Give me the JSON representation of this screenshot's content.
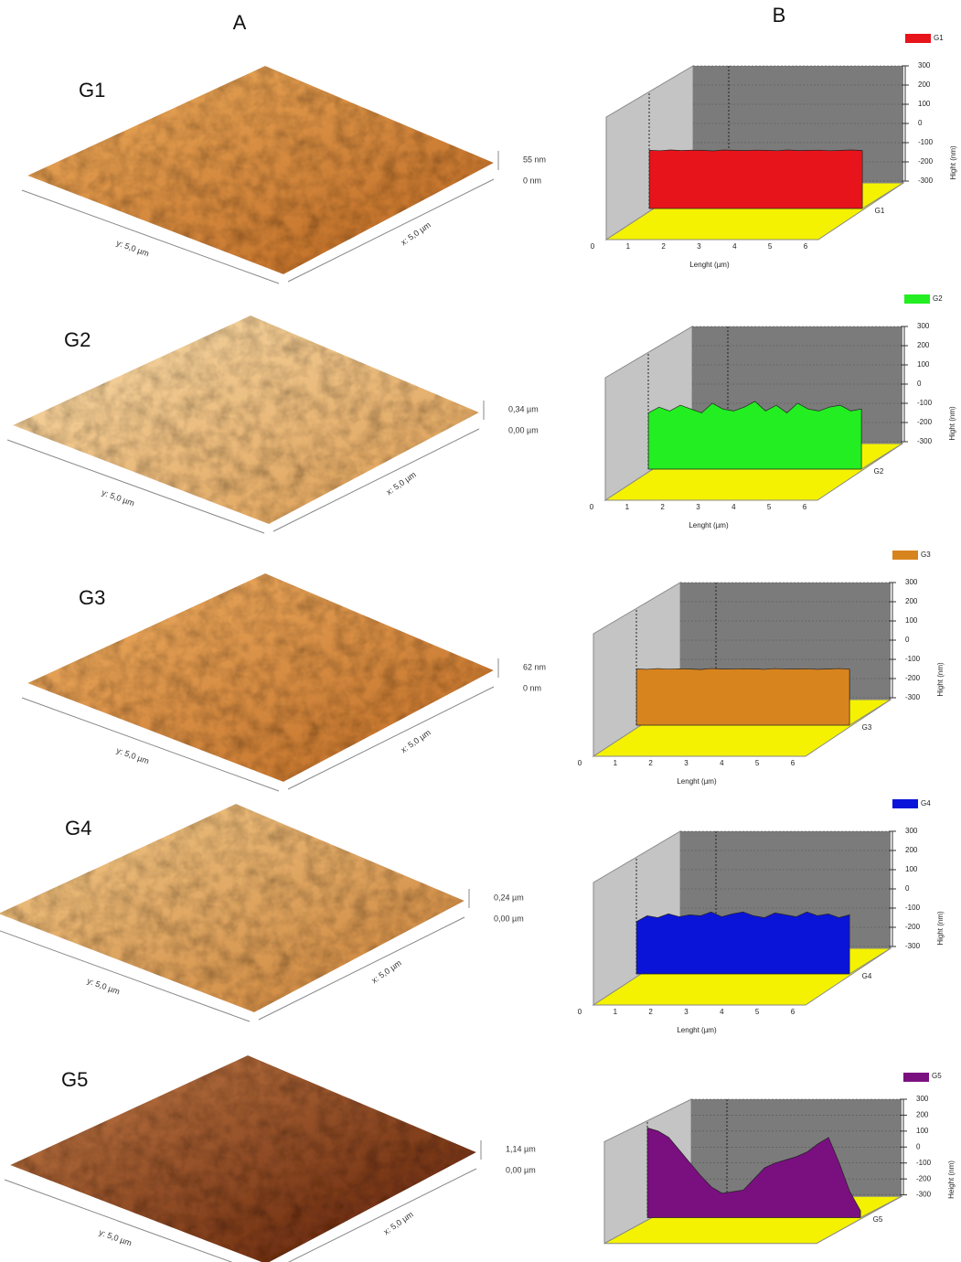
{
  "panel_labels": [
    "A",
    "B"
  ],
  "afm": [
    {
      "label": "G1",
      "z_max": "55 nm",
      "z_min": "0 nm",
      "y_size": "y: 5,0 µm",
      "x_size": "x: 5,0 µm"
    },
    {
      "label": "G2",
      "z_max": "0,34 µm",
      "z_min": "0,00 µm",
      "y_size": "y: 5,0 µm",
      "x_size": "x: 5,0 µm"
    },
    {
      "label": "G3",
      "z_max": "62 nm",
      "z_min": "0 nm",
      "y_size": "y: 5,0 µm",
      "x_size": "x: 5,0 µm"
    },
    {
      "label": "G4",
      "z_max": "0,24 µm",
      "z_min": "0,00 µm",
      "y_size": "y: 5,0 µm",
      "x_size": "x: 5,0 µm"
    },
    {
      "label": "G5",
      "z_max": "1,14 µm",
      "z_min": "0,00 µm",
      "y_size": "y: 5,0 µm",
      "x_size": "x: 5,0 µm"
    }
  ],
  "chart_data": [
    {
      "type": "area",
      "xlabel": "Lenght (µm)",
      "ylabel": "Hight (nm)",
      "xlim": [
        0,
        7.7
      ],
      "xticks": [
        0,
        1,
        2,
        3,
        4,
        5,
        6
      ],
      "ylim": [
        -300,
        300
      ],
      "yticks": [
        300,
        200,
        100,
        0,
        -100,
        -200,
        -300
      ],
      "x": [
        1.6,
        1.9,
        2.2,
        2.5,
        2.8,
        3.1,
        3.4,
        3.7,
        4.0,
        4.3,
        4.6,
        4.9,
        5.2,
        5.5,
        5.8,
        6.1,
        6.4,
        6.7,
        7.0,
        7.3,
        7.6
      ],
      "series": [
        {
          "name": "G1",
          "color": "#e8141b",
          "values": [
            -140,
            -142,
            -138,
            -141,
            -139,
            -140,
            -143,
            -138,
            -140,
            -141,
            -139,
            -140,
            -142,
            -138,
            -141,
            -140,
            -139,
            -142,
            -140,
            -138,
            -141
          ]
        }
      ]
    },
    {
      "type": "area",
      "xlabel": "Lenght (µm)",
      "ylabel": "Hight (nm)",
      "xlim": [
        0,
        7.7
      ],
      "xticks": [
        0,
        1,
        2,
        3,
        4,
        5,
        6
      ],
      "ylim": [
        -300,
        300
      ],
      "yticks": [
        300,
        200,
        100,
        0,
        -100,
        -200,
        -300
      ],
      "x": [
        1.6,
        1.9,
        2.2,
        2.5,
        2.8,
        3.1,
        3.4,
        3.7,
        4.0,
        4.3,
        4.6,
        4.9,
        5.2,
        5.5,
        5.8,
        6.1,
        6.4,
        6.7,
        7.0,
        7.3,
        7.6
      ],
      "series": [
        {
          "name": "G2",
          "color": "#22ee22",
          "values": [
            -150,
            -120,
            -140,
            -110,
            -130,
            -150,
            -100,
            -130,
            -140,
            -120,
            -90,
            -140,
            -110,
            -150,
            -100,
            -130,
            -140,
            -120,
            -110,
            -140,
            -130
          ]
        }
      ]
    },
    {
      "type": "area",
      "xlabel": "Lenght (µm)",
      "ylabel": "Hight (nm)",
      "xlim": [
        0,
        7.7
      ],
      "xticks": [
        0,
        1,
        2,
        3,
        4,
        5,
        6
      ],
      "ylim": [
        -300,
        300
      ],
      "yticks": [
        300,
        200,
        100,
        0,
        -100,
        -200,
        -300
      ],
      "x": [
        1.6,
        1.9,
        2.2,
        2.5,
        2.8,
        3.1,
        3.4,
        3.7,
        4.0,
        4.3,
        4.6,
        4.9,
        5.2,
        5.5,
        5.8,
        6.1,
        6.4,
        6.7,
        7.0,
        7.3,
        7.6
      ],
      "series": [
        {
          "name": "G3",
          "color": "#d8841e",
          "values": [
            -150,
            -152,
            -148,
            -151,
            -149,
            -150,
            -153,
            -148,
            -150,
            -151,
            -149,
            -150,
            -152,
            -148,
            -151,
            -150,
            -149,
            -152,
            -150,
            -148,
            -151
          ]
        }
      ]
    },
    {
      "type": "area",
      "xlabel": "Lenght (µm)",
      "ylabel": "Hight (nm)",
      "xlim": [
        0,
        7.7
      ],
      "xticks": [
        0,
        1,
        2,
        3,
        4,
        5,
        6
      ],
      "ylim": [
        -300,
        300
      ],
      "yticks": [
        300,
        200,
        100,
        0,
        -100,
        -200,
        -300
      ],
      "x": [
        1.6,
        1.9,
        2.2,
        2.5,
        2.8,
        3.1,
        3.4,
        3.7,
        4.0,
        4.3,
        4.6,
        4.9,
        5.2,
        5.5,
        5.8,
        6.1,
        6.4,
        6.7,
        7.0,
        7.3,
        7.6
      ],
      "series": [
        {
          "name": "G4",
          "color": "#0a14d8",
          "values": [
            -170,
            -140,
            -150,
            -130,
            -145,
            -135,
            -140,
            -120,
            -145,
            -130,
            -120,
            -140,
            -150,
            -125,
            -135,
            -145,
            -120,
            -140,
            -130,
            -150,
            -135
          ]
        }
      ]
    },
    {
      "type": "area",
      "ylabel": "Height (nm)",
      "ylim": [
        -300,
        300
      ],
      "yticks": [
        300,
        200,
        100,
        0,
        -100,
        -200,
        -300
      ],
      "x": [
        1.6,
        1.9,
        2.2,
        2.5,
        2.8,
        3.1,
        3.4,
        3.7,
        4.0,
        4.3,
        4.6,
        4.9,
        5.2,
        5.5,
        5.8,
        6.1,
        6.4,
        6.7,
        7.0,
        7.3,
        7.6
      ],
      "series": [
        {
          "name": "G5",
          "color": "#7a0f80",
          "values": [
            120,
            100,
            60,
            -20,
            -100,
            -180,
            -250,
            -290,
            -280,
            -270,
            -200,
            -130,
            -100,
            -80,
            -60,
            -30,
            20,
            60,
            -100,
            -280,
            -400
          ]
        }
      ]
    }
  ]
}
